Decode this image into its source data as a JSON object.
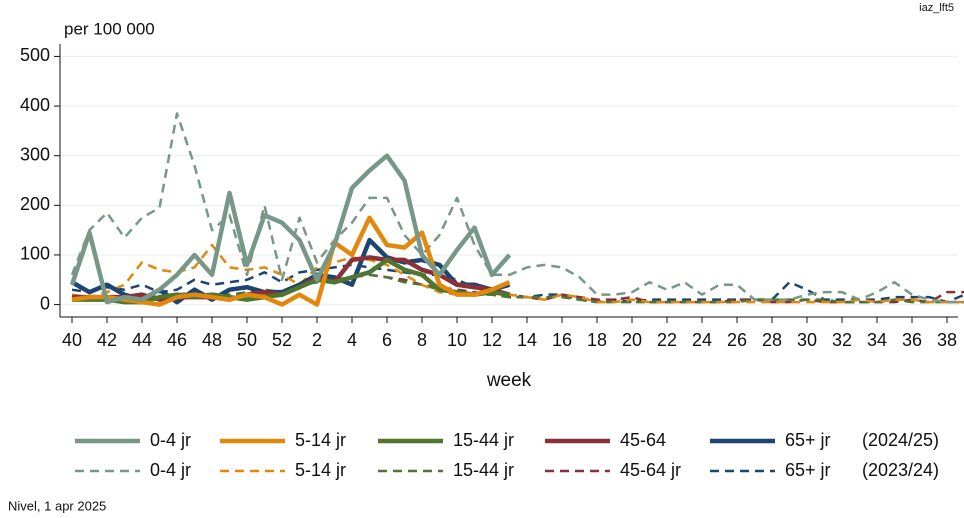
{
  "chart_data": {
    "type": "line",
    "corner_label": "iaz_lft5",
    "y_unit_label": "per 100 000",
    "x_label": "week",
    "note": "Nivel, 1 apr 2025",
    "legend_labels": [
      "(2024/25)",
      "(2023/24)"
    ],
    "categories": [
      40,
      null,
      42,
      null,
      44,
      null,
      46,
      null,
      48,
      null,
      50,
      null,
      52,
      null,
      2,
      null,
      4,
      null,
      6,
      null,
      8,
      null,
      10,
      null,
      12,
      null,
      14,
      null,
      16,
      null,
      18,
      null,
      20,
      null,
      22,
      null,
      24,
      null,
      26,
      null,
      28,
      null,
      30,
      null,
      32,
      null,
      34,
      null,
      36,
      null,
      38,
      null
    ],
    "ylim": [
      -25,
      525
    ],
    "yticks": [
      0,
      100,
      200,
      300,
      400,
      500
    ],
    "grid": true,
    "series": [
      {
        "name": "0-4 jr",
        "color": "#779787",
        "style": "solid",
        "values": [
          40,
          145,
          5,
          15,
          10,
          30,
          60,
          100,
          60,
          225,
          80,
          180,
          165,
          130,
          50,
          120,
          235,
          270,
          300,
          250,
          100,
          60,
          110,
          155,
          60,
          100,
          null,
          null,
          null,
          null,
          null,
          null,
          null,
          null,
          null,
          null,
          null,
          null,
          null,
          null,
          null,
          null,
          null,
          null,
          null,
          null,
          null,
          null,
          null,
          null,
          null,
          null
        ]
      },
      {
        "name": "5-14 jr",
        "color": "#e2880c",
        "style": "solid",
        "values": [
          10,
          15,
          15,
          10,
          5,
          0,
          15,
          20,
          15,
          10,
          20,
          15,
          0,
          20,
          0,
          125,
          100,
          175,
          120,
          115,
          145,
          40,
          20,
          20,
          30,
          45,
          null,
          null,
          null,
          null,
          null,
          null,
          null,
          null,
          null,
          null,
          null,
          null,
          null,
          null,
          null,
          null,
          null,
          null,
          null,
          null,
          null,
          null,
          null,
          null,
          null,
          null
        ]
      },
      {
        "name": "15-44 jr",
        "color": "#4e7630",
        "style": "solid",
        "values": [
          10,
          10,
          10,
          5,
          5,
          15,
          20,
          15,
          20,
          15,
          10,
          15,
          20,
          35,
          50,
          45,
          55,
          65,
          90,
          70,
          60,
          30,
          25,
          20,
          25,
          20,
          null,
          null,
          null,
          null,
          null,
          null,
          null,
          null,
          null,
          null,
          null,
          null,
          null,
          null,
          null,
          null,
          null,
          null,
          null,
          null,
          null,
          null,
          null,
          null,
          null,
          null
        ]
      },
      {
        "name": "45-64",
        "color": "#8c3038",
        "style": "solid",
        "values": [
          15,
          15,
          15,
          15,
          20,
          10,
          15,
          15,
          15,
          10,
          20,
          25,
          20,
          35,
          55,
          45,
          90,
          95,
          90,
          90,
          70,
          60,
          40,
          35,
          30,
          20,
          null,
          null,
          null,
          null,
          null,
          null,
          null,
          null,
          null,
          null,
          null,
          null,
          null,
          null,
          null,
          null,
          null,
          null,
          null,
          null,
          null,
          null,
          null,
          null,
          null,
          null
        ]
      },
      {
        "name": "65+ jr",
        "color": "#1c4670",
        "style": "solid",
        "values": [
          45,
          25,
          40,
          20,
          10,
          30,
          5,
          30,
          10,
          30,
          35,
          25,
          25,
          40,
          60,
          55,
          40,
          130,
          95,
          85,
          90,
          80,
          40,
          40,
          30,
          40,
          null,
          null,
          null,
          null,
          null,
          null,
          null,
          null,
          null,
          null,
          null,
          null,
          null,
          null,
          null,
          null,
          null,
          null,
          null,
          null,
          null,
          null,
          null,
          null,
          null,
          null
        ]
      },
      {
        "name": "0-4 jr",
        "color": "#779787",
        "style": "dashed",
        "values": [
          60,
          150,
          185,
          135,
          175,
          195,
          385,
          280,
          150,
          180,
          60,
          200,
          50,
          175,
          85,
          130,
          165,
          215,
          215,
          140,
          100,
          140,
          215,
          120,
          60,
          60,
          75,
          80,
          75,
          55,
          20,
          20,
          25,
          45,
          30,
          45,
          20,
          40,
          40,
          10,
          10,
          10,
          20,
          25,
          25,
          10,
          25,
          45,
          20,
          10,
          5,
          5
        ]
      },
      {
        "name": "5-14 jr",
        "color": "#e2880c",
        "style": "dashed",
        "values": [
          20,
          15,
          25,
          40,
          85,
          70,
          65,
          75,
          120,
          75,
          70,
          75,
          60,
          40,
          75,
          85,
          95,
          90,
          80,
          60,
          40,
          25,
          20,
          20,
          25,
          20,
          15,
          10,
          20,
          15,
          5,
          5,
          10,
          5,
          5,
          5,
          5,
          5,
          5,
          5,
          5,
          5,
          5,
          5,
          5,
          10,
          5,
          10,
          10,
          5,
          5,
          5
        ]
      },
      {
        "name": "15-44 jr",
        "color": "#4e7630",
        "style": "dashed",
        "values": [
          10,
          10,
          10,
          10,
          10,
          15,
          20,
          25,
          20,
          20,
          25,
          30,
          25,
          40,
          45,
          50,
          55,
          60,
          55,
          45,
          40,
          30,
          25,
          20,
          20,
          15,
          15,
          15,
          15,
          10,
          5,
          5,
          5,
          5,
          5,
          5,
          5,
          5,
          5,
          10,
          10,
          10,
          10,
          10,
          5,
          5,
          5,
          10,
          5,
          5,
          5,
          5
        ]
      },
      {
        "name": "45-64 jr",
        "color": "#8c3038",
        "style": "dashed",
        "values": [
          10,
          15,
          15,
          15,
          20,
          15,
          20,
          20,
          20,
          20,
          20,
          25,
          25,
          40,
          45,
          50,
          55,
          60,
          55,
          50,
          40,
          35,
          30,
          25,
          20,
          15,
          15,
          10,
          20,
          15,
          10,
          10,
          15,
          5,
          5,
          5,
          5,
          5,
          10,
          10,
          5,
          5,
          10,
          5,
          5,
          5,
          5,
          5,
          10,
          5,
          25,
          25
        ]
      },
      {
        "name": "65+ jr",
        "color": "#1c4670",
        "style": "dashed",
        "values": [
          30,
          25,
          35,
          30,
          40,
          25,
          30,
          50,
          40,
          45,
          50,
          65,
          45,
          65,
          70,
          75,
          80,
          75,
          70,
          65,
          60,
          60,
          50,
          35,
          25,
          20,
          15,
          20,
          20,
          10,
          5,
          10,
          5,
          10,
          10,
          10,
          10,
          10,
          10,
          10,
          10,
          45,
          30,
          10,
          10,
          10,
          10,
          15,
          15,
          15,
          5,
          20
        ]
      }
    ]
  }
}
